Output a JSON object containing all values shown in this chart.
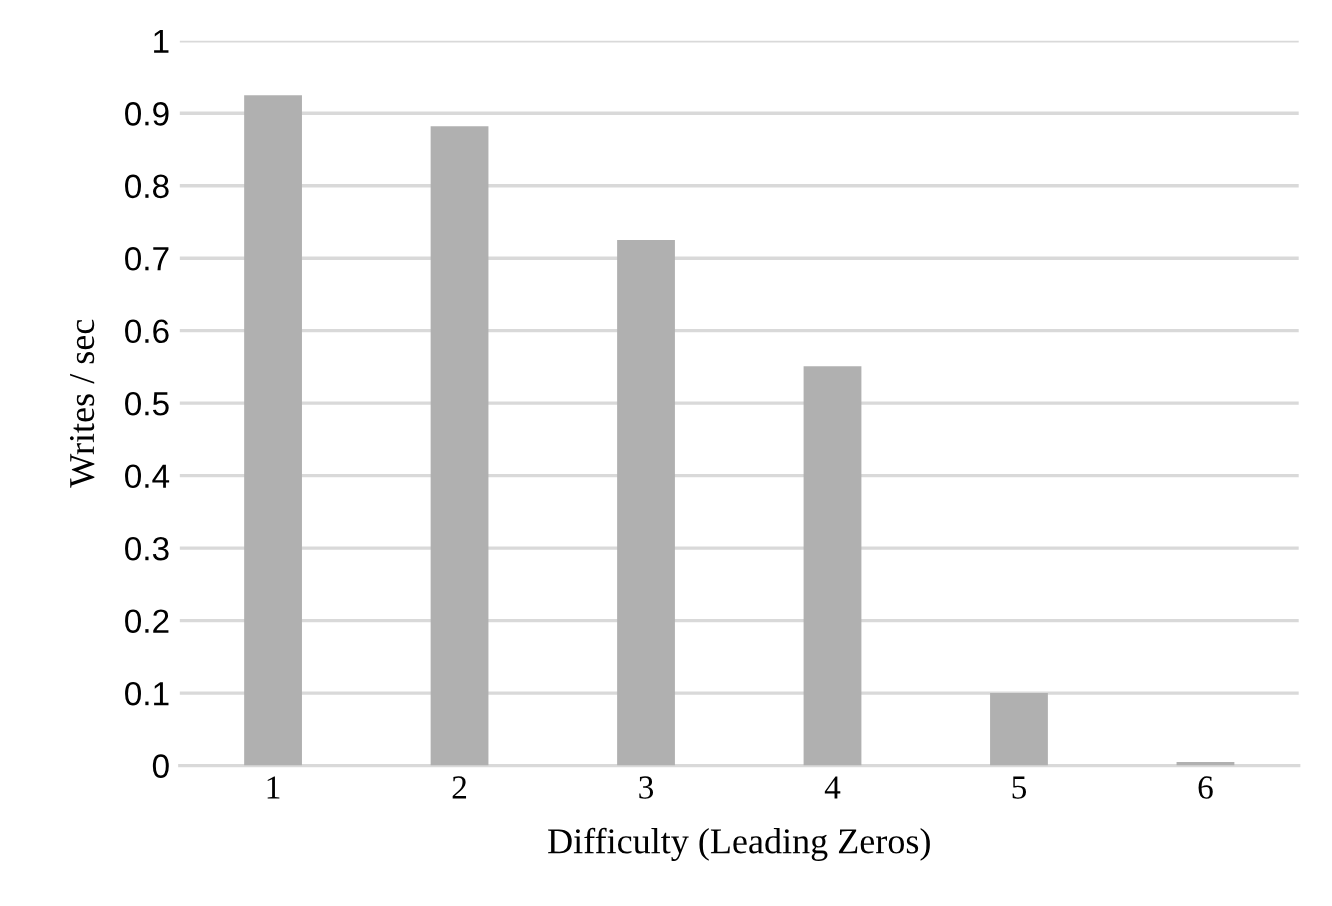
{
  "chart_data": {
    "type": "bar",
    "xlabel": "Difficulty (Leading Zeros)",
    "ylabel": "Writes / sec",
    "categories": [
      "1",
      "2",
      "3",
      "4",
      "5",
      "6"
    ],
    "values": [
      0.925,
      0.882,
      0.725,
      0.551,
      0.1,
      0.005
    ],
    "color": "#b0b0b0",
    "ylim": [
      0,
      1
    ],
    "yticks": [
      0,
      0.1,
      0.2,
      0.3,
      0.4,
      0.5,
      0.6,
      0.7,
      0.8,
      0.9,
      1
    ],
    "grid": "y"
  }
}
